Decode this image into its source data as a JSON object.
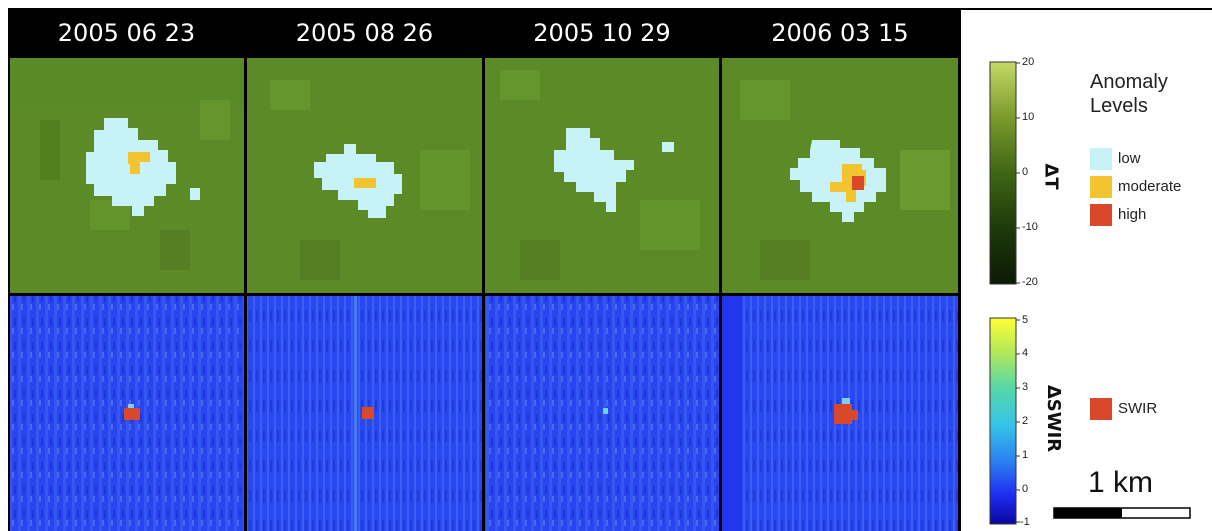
{
  "panels": [
    {
      "date": "2005 06 23"
    },
    {
      "date": "2005 08 26"
    },
    {
      "date": "2005 10 29"
    },
    {
      "date": "2006 03 15"
    }
  ],
  "colorbar_dt": {
    "label": "ΔT",
    "ticks": [
      "20",
      "10",
      "0",
      "-10",
      "-20"
    ],
    "colors": [
      "#c5d866",
      "#7a9b2c",
      "#3f6614",
      "#1d3a0a",
      "#0b1a05"
    ]
  },
  "colorbar_swir": {
    "label": "ΔSWIR",
    "ticks": [
      "5",
      "4",
      "3",
      "2",
      "1",
      "0",
      "-1"
    ],
    "colors": [
      "#ffff33",
      "#b0e85a",
      "#55d7a8",
      "#35c4e8",
      "#2a7ff0",
      "#1f2cf0",
      "#0a06a0"
    ]
  },
  "legend": {
    "title": "Anomaly Levels",
    "items": [
      {
        "label": "low",
        "color": "#c7f2f7"
      },
      {
        "label": "moderate",
        "color": "#f2c530"
      },
      {
        "label": "high",
        "color": "#d9482b"
      }
    ],
    "swir_item": {
      "label": "SWIR",
      "color": "#d9482b"
    }
  },
  "scale_bar": {
    "label": "1 km"
  },
  "colors": {
    "green_bg": "#5b8a26",
    "blue_bg": "#2a44ee",
    "header_bg": "#000000"
  }
}
